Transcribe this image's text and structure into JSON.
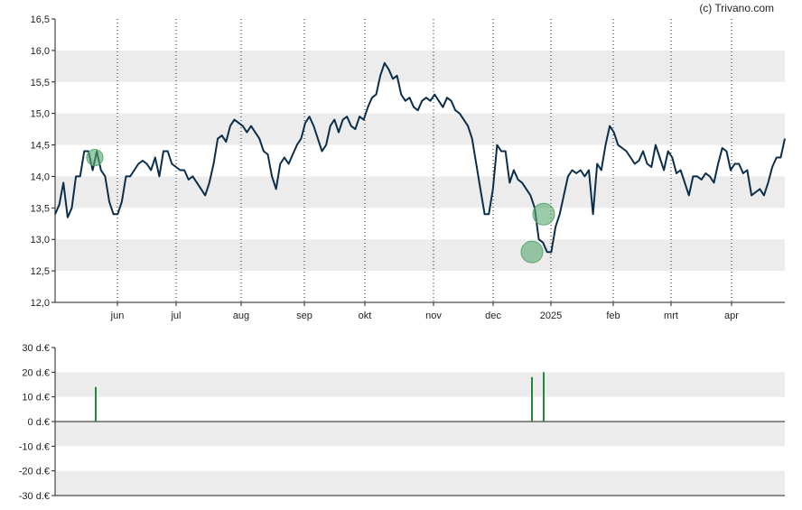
{
  "credit": "(c) Trivano.com",
  "colors": {
    "line": "#0b2e4a",
    "band": "#ececec",
    "marker": "#5aa870",
    "bar": "#1e8a3a"
  },
  "chart_data": [
    {
      "type": "line",
      "title": "",
      "xlabel": "",
      "ylabel": "",
      "ylim": [
        12.0,
        16.5
      ],
      "grid": true,
      "y_ticks": [
        "12,0",
        "12,5",
        "13,0",
        "13,5",
        "14,0",
        "14,5",
        "15,0",
        "15,5",
        "16,0",
        "16,5"
      ],
      "x_ticks": [
        "jun",
        "jul",
        "aug",
        "sep",
        "okt",
        "nov",
        "dec",
        "2025",
        "feb",
        "mrt",
        "apr"
      ],
      "x_days_approx": [
        0,
        90,
        180,
        270,
        365
      ],
      "series": [
        {
          "values": [
            13.4,
            13.55,
            13.9,
            13.35,
            13.5,
            14.0,
            14.0,
            14.4,
            14.4,
            14.1,
            14.4,
            14.1,
            14.0,
            13.6,
            13.4,
            13.4,
            13.6,
            14.0,
            14.0,
            14.1,
            14.2,
            14.25,
            14.2,
            14.1,
            14.3,
            14.0,
            14.4,
            14.4,
            14.2,
            14.15,
            14.1,
            14.1,
            13.95,
            14.0,
            13.9,
            13.8,
            13.7,
            13.9,
            14.2,
            14.6,
            14.65,
            14.55,
            14.8,
            14.9,
            14.85,
            14.8,
            14.7,
            14.8,
            14.7,
            14.6,
            14.4,
            14.35,
            14.0,
            13.8,
            14.2,
            14.3,
            14.2,
            14.35,
            14.5,
            14.6,
            14.85,
            14.95,
            14.8,
            14.6,
            14.4,
            14.5,
            14.8,
            14.9,
            14.7,
            14.9,
            14.95,
            14.8,
            14.75,
            14.95,
            14.9,
            15.1,
            15.25,
            15.3,
            15.6,
            15.8,
            15.7,
            15.55,
            15.6,
            15.3,
            15.2,
            15.25,
            15.1,
            15.05,
            15.2,
            15.25,
            15.2,
            15.3,
            15.2,
            15.1,
            15.25,
            15.2,
            15.05,
            15.0,
            14.9,
            14.8,
            14.6,
            14.2,
            13.8,
            13.4,
            13.4,
            13.8,
            14.5,
            14.4,
            14.4,
            13.9,
            14.1,
            13.95,
            13.9,
            13.8,
            13.7,
            13.5,
            13.0,
            12.95,
            12.8,
            12.8,
            13.2,
            13.4,
            13.7,
            14.0,
            14.1,
            14.05,
            14.1,
            14.0,
            14.1,
            13.4,
            14.2,
            14.1,
            14.5,
            14.8,
            14.7,
            14.5,
            14.45,
            14.4,
            14.3,
            14.2,
            14.25,
            14.4,
            14.2,
            14.15,
            14.5,
            14.3,
            14.1,
            14.4,
            14.3,
            14.05,
            14.1,
            13.9,
            13.7,
            14.0,
            14.0,
            13.95,
            14.05,
            14.0,
            13.9,
            14.2,
            14.45,
            14.4,
            14.1,
            14.2,
            14.2,
            14.05,
            14.1,
            13.7,
            13.75,
            13.8,
            13.7,
            13.9,
            14.15,
            14.3,
            14.3,
            14.6
          ]
        }
      ],
      "markers": [
        14.3,
        12.8,
        13.4
      ]
    },
    {
      "type": "bar",
      "title": "",
      "xlabel": "",
      "ylabel": "",
      "ylim": [
        -30,
        30
      ],
      "grid": true,
      "y_ticks": [
        "30 d.€",
        "20 d.€",
        "10 d.€",
        "0 d.€",
        "-10 d.€",
        "-20 d.€",
        "-30 d.€"
      ],
      "bars": [
        14.0,
        18.0,
        20.0
      ]
    }
  ]
}
